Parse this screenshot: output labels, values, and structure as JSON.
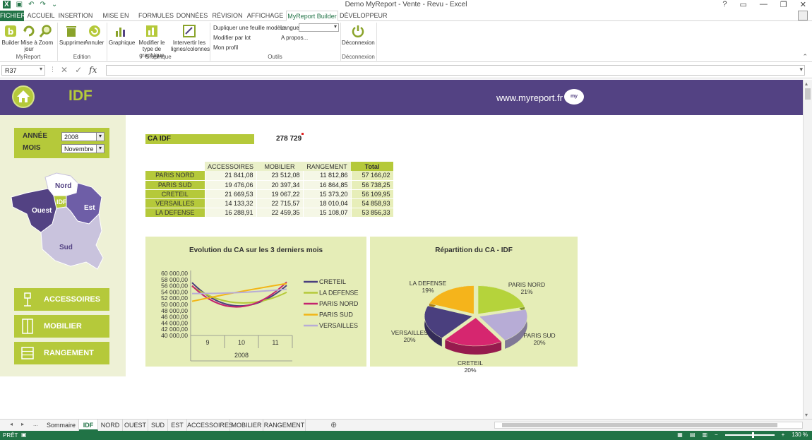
{
  "window": {
    "title": "Demo MyReport - Vente - Revu - Excel",
    "controls": [
      "?",
      "▭",
      "—",
      "❐",
      "✕"
    ]
  },
  "ribbon_tabs": [
    {
      "label": "FICHIER",
      "w": 34
    },
    {
      "label": "ACCUEIL",
      "w": 44
    },
    {
      "label": "INSERTION",
      "w": 50
    },
    {
      "label": "MISE EN PAGE",
      "w": 60
    },
    {
      "label": "FORMULES",
      "w": 50
    },
    {
      "label": "DONNÉES",
      "w": 48
    },
    {
      "label": "RÉVISION",
      "w": 48
    },
    {
      "label": "AFFICHAGE",
      "w": 55
    },
    {
      "label": "MyReport Builder",
      "w": 74
    },
    {
      "label": "DÉVELOPPEUR",
      "w": 64
    }
  ],
  "ribbon": {
    "builder": "Builder",
    "miseajour": "Mise à jour",
    "zoom": "Zoom",
    "myreport_group": "MyReport",
    "supprimer": "Supprimer",
    "annuler": "Annuler",
    "edition_group": "Edition",
    "graphique": "Graphique",
    "modifier_type": "Modifier le type de graphique",
    "intervertir": "Intervertir les lignes/colonnes",
    "graphique_group": "Graphique",
    "dupliquer": "Dupliquer une feuille modèle",
    "langue": "Langue",
    "modifier_lot": "Modifier par lot",
    "apropos": "A propos...",
    "mon_profil": "Mon profil",
    "outils_group": "Outils",
    "deconnexion": "Déconnexion",
    "deconnexion_group": "Déconnexion"
  },
  "formula_bar": {
    "namebox": "R37",
    "fx": "fx",
    "value": ""
  },
  "dashboard": {
    "title": "IDF",
    "website": "www.myreport.fr",
    "logo_text": "my",
    "filters": {
      "annee_label": "ANNÉE",
      "annee_value": "2008",
      "mois_label": "MOIS",
      "mois_value": "Novembre"
    },
    "map_labels": {
      "nord": "Nord",
      "idf": "IDF",
      "est": "Est",
      "ouest": "Ouest",
      "sud": "Sud"
    },
    "categories": [
      "ACCESSOIRES",
      "MOBILIER",
      "RANGEMENT"
    ],
    "ca_label": "CA IDF",
    "ca_value": "278 729",
    "table": {
      "headers": [
        "ACCESSOIRES",
        "MOBILIER",
        "RANGEMENT",
        "Total"
      ],
      "rows": [
        {
          "label": "PARIS NORD",
          "values": [
            "21 841,08",
            "23 512,08",
            "11 812,86",
            "57 166,02"
          ]
        },
        {
          "label": "PARIS SUD",
          "values": [
            "19 476,06",
            "20 397,34",
            "16 864,85",
            "56 738,25"
          ]
        },
        {
          "label": "CRETEIL",
          "values": [
            "21 669,53",
            "19 067,22",
            "15 373,20",
            "56 109,95"
          ]
        },
        {
          "label": "VERSAILLES",
          "values": [
            "14 133,32",
            "22 715,57",
            "18 010,04",
            "54 858,93"
          ]
        },
        {
          "label": "LA DEFENSE",
          "values": [
            "16 288,91",
            "22 459,35",
            "15 108,07",
            "53 856,33"
          ]
        }
      ]
    }
  },
  "chart_data": [
    {
      "type": "line",
      "title": "Evolution du CA sur les 3 derniers mois",
      "categories": [
        "9",
        "10",
        "11"
      ],
      "group_label": "2008",
      "ylim": [
        40000,
        60000
      ],
      "yticks": [
        "60 000,00",
        "58 000,00",
        "56 000,00",
        "54 000,00",
        "52 000,00",
        "50 000,00",
        "48 000,00",
        "46 000,00",
        "44 000,00",
        "42 000,00",
        "40 000,00"
      ],
      "legend_position": "right",
      "series": [
        {
          "name": "CRETEIL",
          "color": "#4a3f7e",
          "values": [
            57000,
            49500,
            56100
          ]
        },
        {
          "name": "LA DEFENSE",
          "color": "#b5c93a",
          "values": [
            55800,
            50500,
            53900
          ]
        },
        {
          "name": "PARIS NORD",
          "color": "#c4246e",
          "values": [
            56000,
            49200,
            57200
          ]
        },
        {
          "name": "PARIS SUD",
          "color": "#f2b516",
          "values": [
            51000,
            54000,
            56700
          ]
        },
        {
          "name": "VERSAILLES",
          "color": "#b7acd6",
          "values": [
            53500,
            53800,
            54900
          ]
        }
      ]
    },
    {
      "type": "pie",
      "title": "Répartition du CA - IDF",
      "slices": [
        {
          "name": "PARIS NORD",
          "label": "21%",
          "value": 21,
          "color": "#b5d33b"
        },
        {
          "name": "PARIS SUD",
          "label": "20%",
          "value": 20,
          "color": "#b7acd6"
        },
        {
          "name": "CRETEIL",
          "label": "20%",
          "value": 20,
          "color": "#d6266f"
        },
        {
          "name": "VERSAILLES",
          "label": "20%",
          "value": 20,
          "color": "#4a3f7e"
        },
        {
          "name": "LA DEFENSE",
          "label": "19%",
          "value": 19,
          "color": "#f5b41b"
        }
      ]
    }
  ],
  "sheet_tabs": {
    "nav": [
      "◂",
      "▸",
      "..."
    ],
    "tabs": [
      {
        "label": "Sommaire",
        "w": 50
      },
      {
        "label": "IDF",
        "w": 27
      },
      {
        "label": "NORD",
        "w": 35
      },
      {
        "label": "OUEST",
        "w": 36
      },
      {
        "label": "SUD",
        "w": 28
      },
      {
        "label": "EST",
        "w": 27
      },
      {
        "label": "ACCESSOIRES",
        "w": 61
      },
      {
        "label": "MOBILIER",
        "w": 47
      },
      {
        "label": "RANGEMENT",
        "w": 60
      }
    ],
    "active": "IDF",
    "add": "⊕"
  },
  "status": {
    "ready": "PRÊT",
    "zoom": "130 %"
  }
}
